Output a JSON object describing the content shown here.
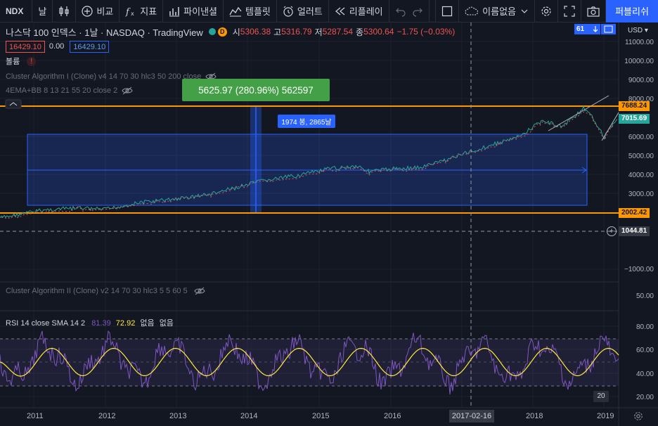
{
  "toolbar": {
    "symbol": "NDX",
    "interval": "날",
    "compare": "비교",
    "indicators": "지표",
    "financials": "파이낸셜",
    "templates": "템플릿",
    "alert": "얼러트",
    "replay": "리플레이",
    "layout_name": "이름없음",
    "publish": "퍼블리쉬"
  },
  "legend": {
    "title": "나스닥 100 인덱스 · 1날 · NASDAQ · TradingView",
    "badge": "D",
    "open_k": "시",
    "open_v": "5306.38",
    "high_k": "고",
    "high_v": "5316.79",
    "low_k": "저",
    "low_v": "5287.54",
    "close_k": "종",
    "close_v": "5300.64",
    "change": "−1.75 (−0.03%)",
    "sell_price": "16429.10",
    "spread": "0.00",
    "buy_price": "16429.10",
    "volume_label": "볼륨",
    "volume_warn": "!",
    "indicator1": "Cluster Algorithm I (Clone) v4 14 70 30 hlc3 50 200 close",
    "indicator2": "4EMA+BB 8 13 21 55 20 close 2",
    "indicator3": "Cluster Algorithm II (Clone) v2 14 70 30 hlc3 5 5 60 5"
  },
  "rsi": {
    "label": "RSI 14 close SMA 14 2",
    "rsi_value": "81.39",
    "sma_value": "72.92",
    "extra1": "없음",
    "extra2": "없음"
  },
  "measure": {
    "result": "5625.97 (280.96%) 562597",
    "bars": "1974 봉, 2865날"
  },
  "axis": {
    "currency": "USD",
    "price_ticks": [
      "11000.00",
      "10000.00",
      "9000.00",
      "8000.00",
      "6000.00",
      "5000.00",
      "4000.00",
      "3000.00",
      "−1000.00"
    ],
    "upper_line": "7688.24",
    "current_price": "7015.69",
    "lower_line": "2002.42",
    "cursor_price": "1044.81",
    "rsi_ticks": [
      "50.00",
      "80.00",
      "60.00",
      "40.00",
      "20.00"
    ],
    "top_badge": "61"
  },
  "xaxis": {
    "ticks": [
      "2011",
      "2012",
      "2013",
      "2014",
      "2015",
      "2016",
      "2018",
      "2019"
    ],
    "cursor_date": "2017-02-16",
    "scroll_badge": "20"
  },
  "colors": {
    "background": "#131722",
    "orange": "#ff9800",
    "blue": "#2962ff",
    "green": "#26a69a",
    "red": "#ef5350",
    "rsi_purple": "#7e57c2",
    "rsi_yellow": "#ffeb3b"
  }
}
